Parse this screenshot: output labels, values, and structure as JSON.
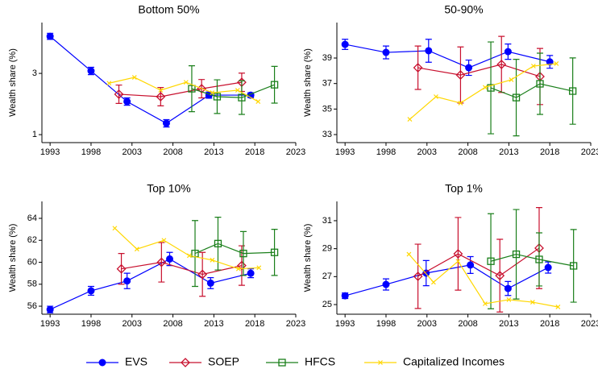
{
  "chart_data": [
    {
      "type": "line",
      "title": "Bottom 50%",
      "y_label": "Wealth share (%)",
      "xlim": [
        1992,
        2023
      ],
      "xticks": [
        1993,
        1998,
        2003,
        2008,
        2013,
        2018,
        2023
      ],
      "ylim": [
        0.74,
        4.66
      ],
      "yticks": [
        1,
        3
      ],
      "series": [
        {
          "name": "EVS",
          "color": "#0000ff",
          "marker": "circle",
          "x": [
            1993,
            1998,
            2002.4,
            2007.2,
            2012.4,
            2017.5
          ],
          "values": [
            4.21,
            3.08,
            2.08,
            1.37,
            2.29,
            2.29
          ],
          "errors": [
            0.1,
            0.12,
            0.12,
            0.12,
            0.1,
            0.08
          ]
        },
        {
          "name": "SOEP",
          "color": "#c8102e",
          "marker": "diamond",
          "x": [
            2001.4,
            2006.5,
            2011.5,
            2016.4
          ],
          "values": [
            2.32,
            2.24,
            2.5,
            2.71
          ],
          "errors": [
            0.3,
            0.3,
            0.3,
            0.3
          ]
        },
        {
          "name": "HFCS",
          "color": "#1a7f1a",
          "marker": "square",
          "x": [
            2010.3,
            2013.4,
            2016.4,
            2020.4
          ],
          "values": [
            2.5,
            2.24,
            2.21,
            2.63
          ],
          "errors": [
            0.75,
            0.55,
            0.55,
            0.6
          ]
        },
        {
          "name": "Capitalized Incomes",
          "color": "#ffd700",
          "marker": "x",
          "x": [
            2000.2,
            2003.3,
            2006.5,
            2009.6,
            2012.8,
            2015.9,
            2018.4
          ],
          "values": [
            2.68,
            2.87,
            2.45,
            2.71,
            2.37,
            2.45,
            2.08
          ]
        }
      ]
    },
    {
      "type": "line",
      "title": "50-90%",
      "y_label": "Wealth share (%)",
      "xlim": [
        1992,
        2023
      ],
      "xticks": [
        1993,
        1998,
        2003,
        2008,
        2013,
        2018,
        2023
      ],
      "ylim": [
        32.37,
        41.78
      ],
      "yticks": [
        33,
        35,
        37,
        39
      ],
      "series": [
        {
          "name": "EVS",
          "color": "#0000ff",
          "marker": "circle",
          "x": [
            1993,
            1998,
            2003.2,
            2008.1,
            2012.9,
            2018
          ],
          "values": [
            40.07,
            39.44,
            39.57,
            38.24,
            39.5,
            38.7
          ],
          "errors": [
            0.4,
            0.5,
            0.9,
            0.6,
            0.6,
            0.5
          ]
        },
        {
          "name": "SOEP",
          "color": "#c8102e",
          "marker": "diamond",
          "x": [
            2001.9,
            2007.1,
            2012.1,
            2016.8
          ],
          "values": [
            38.24,
            37.67,
            38.5,
            37.55
          ],
          "errors": [
            1.7,
            2.2,
            2.2,
            2.2
          ]
        },
        {
          "name": "HFCS",
          "color": "#1a7f1a",
          "marker": "square",
          "x": [
            2010.8,
            2013.9,
            2016.8,
            2020.8
          ],
          "values": [
            36.66,
            35.9,
            36.98,
            36.41
          ],
          "errors": [
            3.6,
            3,
            2.4,
            2.6
          ]
        },
        {
          "name": "Capitalized Incomes",
          "color": "#ffd700",
          "marker": "x",
          "x": [
            2000.9,
            2004.1,
            2007.1,
            2010.1,
            2013.3,
            2016,
            2018.8
          ],
          "values": [
            34.2,
            35.97,
            35.47,
            36.7,
            37.3,
            38.37,
            38.56
          ]
        }
      ]
    },
    {
      "type": "line",
      "title": "Top 10%",
      "y_label": "Wealth share (%)",
      "xlim": [
        1992,
        2023
      ],
      "xticks": [
        1993,
        1998,
        2003,
        2008,
        2013,
        2018,
        2023
      ],
      "ylim": [
        55.27,
        65.54
      ],
      "yticks": [
        56,
        58,
        60,
        62,
        64
      ],
      "series": [
        {
          "name": "EVS",
          "color": "#0000ff",
          "marker": "circle",
          "x": [
            1993,
            1998,
            2002.4,
            2007.6,
            2012.6,
            2017.5
          ],
          "values": [
            55.7,
            57.4,
            58.3,
            60.3,
            58.1,
            59
          ],
          "errors": [
            0.3,
            0.4,
            0.7,
            0.6,
            0.5,
            0.4
          ]
        },
        {
          "name": "SOEP",
          "color": "#c8102e",
          "marker": "diamond",
          "x": [
            2001.7,
            2006.6,
            2011.6,
            2016.4
          ],
          "values": [
            59.4,
            60,
            58.9,
            59.7
          ],
          "errors": [
            1.4,
            1.8,
            2,
            1.8
          ]
        },
        {
          "name": "HFCS",
          "color": "#1a7f1a",
          "marker": "square",
          "x": [
            2010.7,
            2013.5,
            2016.6,
            2020.4
          ],
          "values": [
            60.8,
            61.7,
            60.8,
            60.9
          ],
          "errors": [
            3,
            2.4,
            2,
            2.1
          ]
        },
        {
          "name": "Capitalized Incomes",
          "color": "#ffd700",
          "marker": "x",
          "x": [
            2000.9,
            2003.6,
            2006.9,
            2010,
            2012.8,
            2016,
            2018.5
          ],
          "values": [
            63.1,
            61.2,
            62,
            60.6,
            60.2,
            59.4,
            59.5
          ]
        }
      ]
    },
    {
      "type": "line",
      "title": "Top 1%",
      "y_label": "Wealth share (%)",
      "xlim": [
        1992,
        2023
      ],
      "xticks": [
        1993,
        1998,
        2003,
        2008,
        2013,
        2018,
        2023
      ],
      "ylim": [
        24.31,
        32.38
      ],
      "yticks": [
        25,
        27,
        29,
        31
      ],
      "series": [
        {
          "name": "EVS",
          "color": "#0000ff",
          "marker": "circle",
          "x": [
            1993,
            1998,
            2002.9,
            2008.3,
            2012.9,
            2017.8
          ],
          "values": [
            25.63,
            26.44,
            27.25,
            27.83,
            26.15,
            27.65
          ],
          "errors": [
            0.2,
            0.4,
            0.9,
            0.6,
            0.5,
            0.4
          ]
        },
        {
          "name": "SOEP",
          "color": "#c8102e",
          "marker": "diamond",
          "x": [
            2001.9,
            2006.8,
            2011.9,
            2016.7
          ],
          "values": [
            27.02,
            28.63,
            27.07,
            29.04
          ],
          "errors": [
            2.3,
            2.6,
            2.6,
            2.9
          ]
        },
        {
          "name": "HFCS",
          "color": "#1a7f1a",
          "marker": "square",
          "x": [
            2010.8,
            2013.9,
            2016.7,
            2020.9
          ],
          "values": [
            28.1,
            28.6,
            28.23,
            27.77
          ],
          "errors": [
            3.4,
            3.2,
            1.9,
            2.6
          ]
        },
        {
          "name": "Capitalized Incomes",
          "color": "#ffd700",
          "marker": "x",
          "x": [
            2000.8,
            2003.8,
            2006.8,
            2010.1,
            2013,
            2015.9,
            2019
          ],
          "values": [
            28.6,
            26.6,
            28.1,
            25.06,
            25.35,
            25.17,
            24.83
          ]
        }
      ]
    }
  ]
}
